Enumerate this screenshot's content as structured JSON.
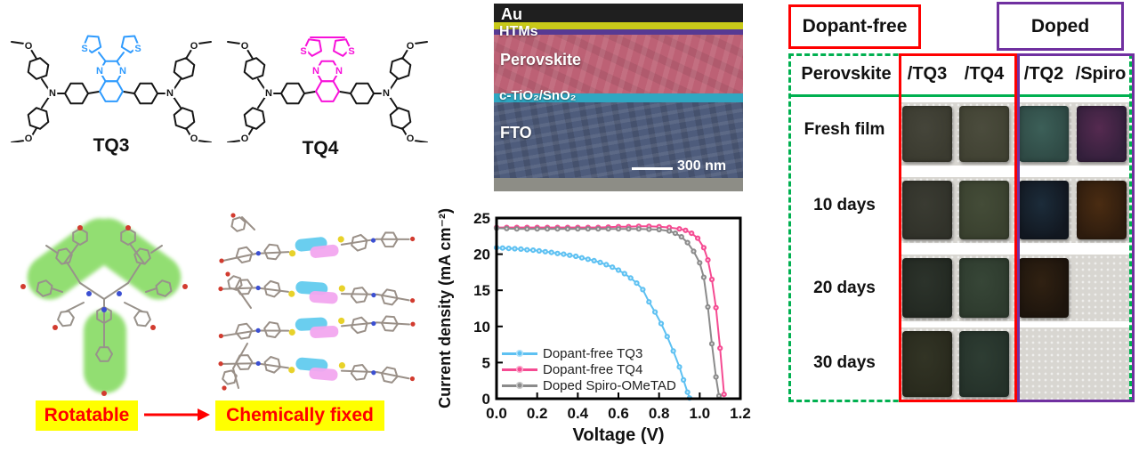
{
  "atoms": {
    "S": "S",
    "N": "N",
    "O": "O"
  },
  "molecules": {
    "tq3": {
      "label": "TQ3",
      "core_color": "#2f9bfe"
    },
    "tq4": {
      "label": "TQ4",
      "core_color": "#f711d9"
    }
  },
  "transformation": {
    "before_label": "Rotatable",
    "after_label": "Chemically fixed",
    "highlight_color": "#ffff00",
    "text_color": "#ff0000",
    "arrow_color": "#ff0000"
  },
  "sem": {
    "layers": [
      {
        "label": "Au",
        "color": "#c9ca19"
      },
      {
        "label": "HTMs",
        "color": "#573a93"
      },
      {
        "label": "Perovskite",
        "color": "#bd6175"
      },
      {
        "label": "c-TiO₂/SnO₂",
        "color": "#2fa7c2"
      },
      {
        "label": "FTO",
        "color": "#4e5c7c"
      }
    ],
    "scale_label": "300 nm"
  },
  "chart_data": {
    "type": "line",
    "title": "",
    "xlabel": "Voltage (V)",
    "ylabel": "Current density (mA cm⁻²)",
    "xlim": [
      0,
      1.2
    ],
    "ylim": [
      0,
      25
    ],
    "x_ticks": [
      "0.0",
      "0.2",
      "0.4",
      "0.6",
      "0.8",
      "1.0",
      "1.2"
    ],
    "y_ticks": [
      "0",
      "5",
      "10",
      "15",
      "20",
      "25"
    ],
    "grid": false,
    "legend_position": "lower-left",
    "series": [
      {
        "name": "Dopant-free TQ3",
        "color": "#5ec1f2",
        "points": [
          [
            0.0,
            20.9
          ],
          [
            0.03,
            20.85
          ],
          [
            0.06,
            20.8
          ],
          [
            0.09,
            20.75
          ],
          [
            0.12,
            20.7
          ],
          [
            0.15,
            20.6
          ],
          [
            0.18,
            20.55
          ],
          [
            0.21,
            20.45
          ],
          [
            0.24,
            20.35
          ],
          [
            0.27,
            20.25
          ],
          [
            0.3,
            20.1
          ],
          [
            0.33,
            20.0
          ],
          [
            0.36,
            19.85
          ],
          [
            0.39,
            19.7
          ],
          [
            0.42,
            19.5
          ],
          [
            0.45,
            19.3
          ],
          [
            0.48,
            19.1
          ],
          [
            0.51,
            18.85
          ],
          [
            0.54,
            18.55
          ],
          [
            0.57,
            18.2
          ],
          [
            0.6,
            17.8
          ],
          [
            0.63,
            17.3
          ],
          [
            0.66,
            16.7
          ],
          [
            0.69,
            16.0
          ],
          [
            0.72,
            15.1
          ],
          [
            0.75,
            13.4
          ],
          [
            0.78,
            12.0
          ],
          [
            0.81,
            10.4
          ],
          [
            0.84,
            8.6
          ],
          [
            0.87,
            6.6
          ],
          [
            0.9,
            4.4
          ],
          [
            0.92,
            2.6
          ],
          [
            0.94,
            0.9
          ],
          [
            0.95,
            0.1
          ]
        ]
      },
      {
        "name": "Dopant-free TQ4",
        "color": "#f54b92",
        "points": [
          [
            0.0,
            23.7
          ],
          [
            0.05,
            23.7
          ],
          [
            0.1,
            23.7
          ],
          [
            0.15,
            23.7
          ],
          [
            0.2,
            23.7
          ],
          [
            0.25,
            23.7
          ],
          [
            0.3,
            23.7
          ],
          [
            0.35,
            23.7
          ],
          [
            0.4,
            23.7
          ],
          [
            0.45,
            23.7
          ],
          [
            0.5,
            23.7
          ],
          [
            0.55,
            23.75
          ],
          [
            0.6,
            23.8
          ],
          [
            0.65,
            23.8
          ],
          [
            0.7,
            23.85
          ],
          [
            0.75,
            23.85
          ],
          [
            0.8,
            23.8
          ],
          [
            0.85,
            23.7
          ],
          [
            0.9,
            23.5
          ],
          [
            0.93,
            23.3
          ],
          [
            0.96,
            22.9
          ],
          [
            0.99,
            22.2
          ],
          [
            1.02,
            20.9
          ],
          [
            1.04,
            19.2
          ],
          [
            1.06,
            16.5
          ],
          [
            1.08,
            12.6
          ],
          [
            1.1,
            7.0
          ],
          [
            1.12,
            0.6
          ]
        ]
      },
      {
        "name": "Doped Spiro-OMeTAD",
        "color": "#8b8b8b",
        "points": [
          [
            0.0,
            23.6
          ],
          [
            0.05,
            23.55
          ],
          [
            0.1,
            23.5
          ],
          [
            0.15,
            23.5
          ],
          [
            0.2,
            23.5
          ],
          [
            0.25,
            23.5
          ],
          [
            0.3,
            23.5
          ],
          [
            0.35,
            23.5
          ],
          [
            0.4,
            23.5
          ],
          [
            0.45,
            23.5
          ],
          [
            0.5,
            23.5
          ],
          [
            0.55,
            23.5
          ],
          [
            0.6,
            23.5
          ],
          [
            0.65,
            23.5
          ],
          [
            0.7,
            23.5
          ],
          [
            0.75,
            23.45
          ],
          [
            0.8,
            23.4
          ],
          [
            0.85,
            23.2
          ],
          [
            0.88,
            22.9
          ],
          [
            0.91,
            22.4
          ],
          [
            0.94,
            21.6
          ],
          [
            0.97,
            20.4
          ],
          [
            1.0,
            18.8
          ],
          [
            1.02,
            16.8
          ],
          [
            1.04,
            12.7
          ],
          [
            1.06,
            7.6
          ],
          [
            1.08,
            3.0
          ],
          [
            1.095,
            0.4
          ]
        ]
      }
    ]
  },
  "stability": {
    "groups": [
      {
        "label": "Dopant-free",
        "color": "#ff0000"
      },
      {
        "label": "Doped",
        "color": "#7030a0"
      }
    ],
    "outline_color": "#00b050",
    "fabric_color": "#d8d6d1",
    "header": [
      "Perovskite",
      "/TQ3",
      "/TQ4",
      "/TQ2",
      "/Spiro"
    ],
    "rows": [
      {
        "label": "Fresh film",
        "films": [
          {
            "color": "#3b3b30",
            "accent": "#45453a"
          },
          {
            "color": "#414233",
            "accent": "#4b4c3d"
          },
          {
            "color": "#2f4a45",
            "accent": "#3c5f58"
          },
          {
            "color": "#34203c",
            "accent": "#552a50"
          }
        ]
      },
      {
        "label": "10 days",
        "films": [
          {
            "color": "#31322a",
            "accent": "#3a3b32"
          },
          {
            "color": "#3a412f",
            "accent": "#444c38"
          },
          {
            "color": "#121821",
            "accent": "#1c2c3a"
          },
          {
            "color": "#2e1c0e",
            "accent": "#4a2c12"
          }
        ]
      },
      {
        "label": "20 days",
        "films": [
          {
            "color": "#232922",
            "accent": "#2c332b"
          },
          {
            "color": "#2e3b2e",
            "accent": "#374637"
          },
          {
            "color": "#1e150d",
            "accent": "#302112"
          },
          {
            "color": "#6f511c",
            "accent": "#8f6c24",
            "spots": true
          }
        ]
      },
      {
        "label": "30 days",
        "films": [
          {
            "color": "#292a1d",
            "accent": "#323425"
          },
          {
            "color": "#25322a",
            "accent": "#2e3d33"
          },
          {
            "color": "#3a2510",
            "accent": "#7a4f16",
            "linear": true,
            "spots": true
          },
          {
            "color": "#8a681d",
            "accent": "#a8852a",
            "spots": true
          }
        ]
      }
    ]
  }
}
